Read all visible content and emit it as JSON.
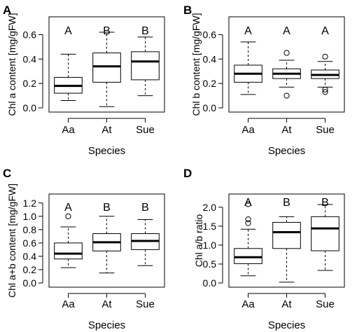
{
  "chart_data": [
    {
      "type": "box",
      "panel": "A",
      "ylabel": "Chl a content [mg/gFW]",
      "xlabel": "Species",
      "categories": [
        "Aa",
        "At",
        "Sue"
      ],
      "ylim": [
        0.0,
        0.7
      ],
      "yticks": [
        "0.0",
        "0.2",
        "0.4",
        "0.6"
      ],
      "boxes": [
        {
          "min": 0.06,
          "q1": 0.12,
          "median": 0.18,
          "q3": 0.25,
          "max": 0.44,
          "outliers": []
        },
        {
          "min": 0.01,
          "q1": 0.21,
          "median": 0.34,
          "q3": 0.45,
          "max": 0.62,
          "outliers": []
        },
        {
          "min": 0.1,
          "q1": 0.23,
          "median": 0.38,
          "q3": 0.46,
          "max": 0.58,
          "outliers": []
        }
      ],
      "group_labels": [
        "A",
        "B",
        "B"
      ]
    },
    {
      "type": "box",
      "panel": "B",
      "ylabel": "Chl b content [mg/gFW]",
      "xlabel": "Species",
      "categories": [
        "Aa",
        "At",
        "Sue"
      ],
      "ylim": [
        0.0,
        0.7
      ],
      "yticks": [
        "0.0",
        "0.2",
        "0.4",
        "0.6"
      ],
      "boxes": [
        {
          "min": 0.11,
          "q1": 0.21,
          "median": 0.28,
          "q3": 0.35,
          "max": 0.54,
          "outliers": []
        },
        {
          "min": 0.17,
          "q1": 0.24,
          "median": 0.28,
          "q3": 0.32,
          "max": 0.39,
          "outliers": [
            0.45,
            0.1
          ]
        },
        {
          "min": 0.17,
          "q1": 0.24,
          "median": 0.27,
          "q3": 0.31,
          "max": 0.38,
          "outliers": [
            0.42,
            0.15,
            0.13
          ]
        }
      ],
      "group_labels": [
        "A",
        "A",
        "A"
      ]
    },
    {
      "type": "box",
      "panel": "C",
      "ylabel": "Chl a+b content [mg/gFW]",
      "xlabel": "Species",
      "categories": [
        "Aa",
        "At",
        "Sue"
      ],
      "ylim": [
        0.0,
        1.25
      ],
      "yticks": [
        "0.0",
        "0.2",
        "0.4",
        "0.6",
        "0.8",
        "1.0",
        "1.2"
      ],
      "boxes": [
        {
          "min": 0.23,
          "q1": 0.36,
          "median": 0.44,
          "q3": 0.6,
          "max": 0.84,
          "outliers": [
            1.0
          ]
        },
        {
          "min": 0.15,
          "q1": 0.48,
          "median": 0.61,
          "q3": 0.74,
          "max": 1.0,
          "outliers": []
        },
        {
          "min": 0.26,
          "q1": 0.5,
          "median": 0.63,
          "q3": 0.74,
          "max": 0.95,
          "outliers": []
        }
      ],
      "group_labels": [
        "A",
        "B",
        "B"
      ]
    },
    {
      "type": "box",
      "panel": "D",
      "ylabel": "Chl a/b ratio",
      "xlabel": "Species",
      "categories": [
        "Aa",
        "At",
        "Sue"
      ],
      "ylim": [
        0.0,
        2.2
      ],
      "yticks": [
        "0.0",
        "0.5",
        "1.0",
        "1.5",
        "2.0"
      ],
      "boxes": [
        {
          "min": 0.19,
          "q1": 0.51,
          "median": 0.68,
          "q3": 0.91,
          "max": 1.42,
          "outliers": [
            1.58,
            1.68,
            2.08
          ]
        },
        {
          "min": 0.02,
          "q1": 0.91,
          "median": 1.34,
          "q3": 1.6,
          "max": 1.75,
          "outliers": []
        },
        {
          "min": 0.33,
          "q1": 0.85,
          "median": 1.44,
          "q3": 1.75,
          "max": 2.07,
          "outliers": []
        }
      ],
      "group_labels": [
        "A",
        "B",
        "B"
      ]
    }
  ]
}
